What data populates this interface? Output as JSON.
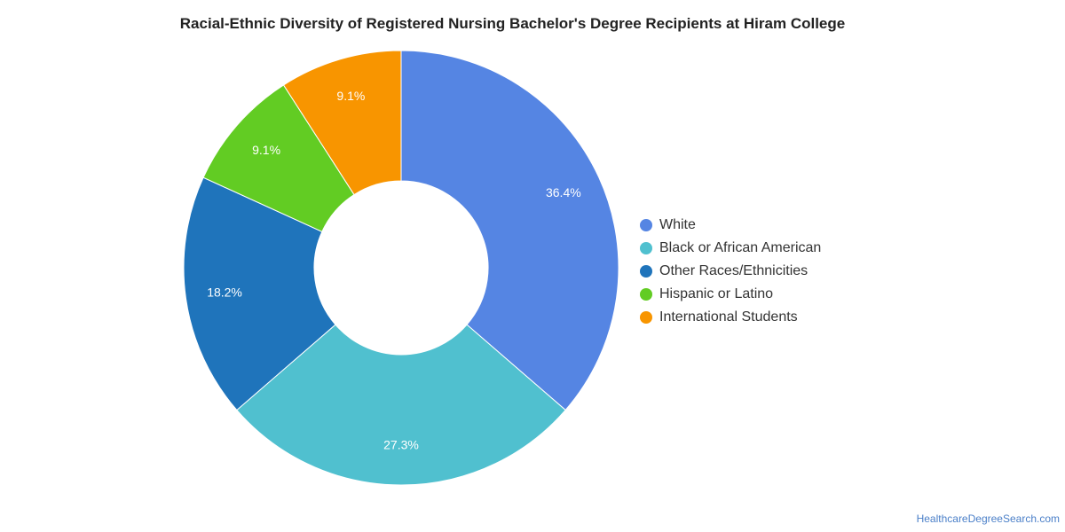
{
  "chart_data": {
    "type": "pie",
    "title": "Racial-Ethnic Diversity of Registered Nursing Bachelor's Degree Recipients at Hiram College",
    "donut": true,
    "legend_position": "right",
    "slices": [
      {
        "label": "White",
        "value": 36.4,
        "display": "36.4%",
        "color": "#5585e3"
      },
      {
        "label": "Black or African American",
        "value": 27.3,
        "display": "27.3%",
        "color": "#50c0cf"
      },
      {
        "label": "Other Races/Ethnicities",
        "value": 18.2,
        "display": "18.2%",
        "color": "#1f74bb"
      },
      {
        "label": "Hispanic or Latino",
        "value": 9.1,
        "display": "9.1%",
        "color": "#62cc23"
      },
      {
        "label": "International Students",
        "value": 9.1,
        "display": "9.1%",
        "color": "#f89500"
      }
    ]
  },
  "source": {
    "label": "HealthcareDegreeSearch.com"
  }
}
